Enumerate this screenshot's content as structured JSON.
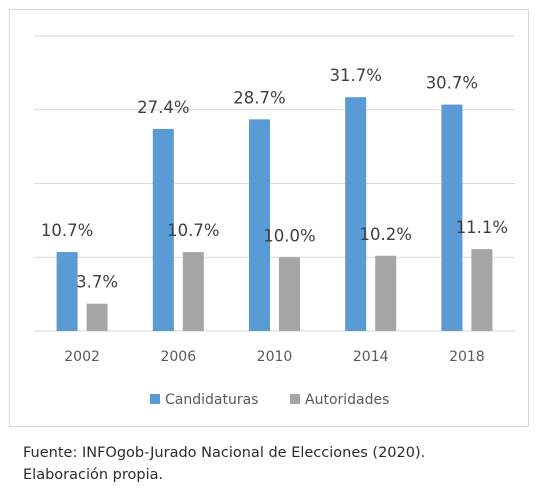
{
  "chart_data": {
    "type": "bar",
    "categories": [
      "2002",
      "2006",
      "2010",
      "2014",
      "2018"
    ],
    "series": [
      {
        "name": "Candidaturas",
        "values": [
          10.7,
          27.4,
          28.7,
          31.7,
          30.7
        ],
        "labels": [
          "10.7%",
          "27.4%",
          "28.7%",
          "31.7%",
          "30.7%"
        ],
        "color": "#5b9bd5"
      },
      {
        "name": "Autoridades",
        "values": [
          3.7,
          10.7,
          10.0,
          10.2,
          11.1
        ],
        "labels": [
          "3.7%",
          "10.7%",
          "10.0%",
          "10.2%",
          "11.1%"
        ],
        "color": "#a5a5a5"
      }
    ],
    "ylim": [
      0,
      40
    ],
    "grid": true,
    "legend_position": "bottom",
    "colors": {
      "gridline": "#d9d9d9",
      "axis_text": "#595959",
      "data_label": "#404040",
      "legend_text": "#595959"
    }
  },
  "footer": {
    "source_line": "Fuente: INFOgob-Jurado Nacional de Elecciones (2020).",
    "credit_line": "Elaboración propia."
  }
}
